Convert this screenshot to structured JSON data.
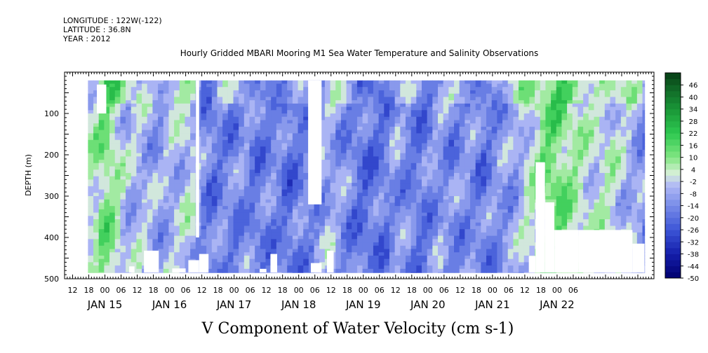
{
  "header": {
    "longitude": "LONGITUDE : 122W(-122)",
    "latitude": "LATITUDE : 36.8N",
    "year": "YEAR : 2012"
  },
  "chart_data": {
    "type": "heatmap",
    "title": "Hourly Gridded MBARI Mooring M1 Sea Water Temperature and Salinity Observations",
    "caption": "V Component of Water Velocity (cm s-1)",
    "ylabel": "DEPTH (m)",
    "x_range_hours": [
      -15,
      204
    ],
    "ylim": [
      500,
      0
    ],
    "y_reversed": true,
    "y_ticks": [
      100,
      200,
      300,
      400,
      500
    ],
    "hour_ticks": [
      "12",
      "18",
      "00",
      "06",
      "12",
      "18",
      "00",
      "06",
      "12",
      "18",
      "00",
      "06",
      "12",
      "18",
      "00",
      "06",
      "12",
      "18",
      "00",
      "06",
      "12",
      "18",
      "00",
      "06",
      "12",
      "18",
      "00",
      "06",
      "12",
      "18",
      "00",
      "06"
    ],
    "day_labels": [
      "JAN 15",
      "JAN 16",
      "JAN 17",
      "JAN 18",
      "JAN 19",
      "JAN 20",
      "JAN 21",
      "JAN 22"
    ],
    "colorbar_labels": [
      "46",
      "40",
      "34",
      "28",
      "22",
      "16",
      "10",
      "4",
      "-2",
      "-8",
      "-14",
      "-20",
      "-26",
      "-32",
      "-38",
      "-44",
      "-50"
    ],
    "value_range": [
      -50,
      52
    ],
    "data_extent": {
      "start_hour": -6.3,
      "end_hour": 200.5,
      "depth_top": 20,
      "depth_bottom": 485
    },
    "column_mean_velocity": [
      {
        "hour": -4,
        "v": 2
      },
      {
        "hour": 0,
        "v": 12
      },
      {
        "hour": 4,
        "v": 6
      },
      {
        "hour": 8,
        "v": -6
      },
      {
        "hour": 12,
        "v": -4
      },
      {
        "hour": 16,
        "v": -6
      },
      {
        "hour": 20,
        "v": -10
      },
      {
        "hour": 24,
        "v": -6
      },
      {
        "hour": 28,
        "v": -4
      },
      {
        "hour": 32,
        "v": 0
      },
      {
        "hour": 36,
        "v": -14
      },
      {
        "hour": 40,
        "v": -18
      },
      {
        "hour": 44,
        "v": -14
      },
      {
        "hour": 48,
        "v": -16
      },
      {
        "hour": 52,
        "v": -12
      },
      {
        "hour": 56,
        "v": -18
      },
      {
        "hour": 60,
        "v": -16
      },
      {
        "hour": 64,
        "v": -14
      },
      {
        "hour": 68,
        "v": -20
      },
      {
        "hour": 72,
        "v": -16
      },
      {
        "hour": 76,
        "v": -14
      },
      {
        "hour": 80,
        "v": -10
      },
      {
        "hour": 84,
        "v": -6
      },
      {
        "hour": 88,
        "v": -12
      },
      {
        "hour": 92,
        "v": -16
      },
      {
        "hour": 96,
        "v": -20
      },
      {
        "hour": 100,
        "v": -18
      },
      {
        "hour": 104,
        "v": -18
      },
      {
        "hour": 108,
        "v": -10
      },
      {
        "hour": 112,
        "v": -14
      },
      {
        "hour": 116,
        "v": -18
      },
      {
        "hour": 120,
        "v": -16
      },
      {
        "hour": 124,
        "v": -10
      },
      {
        "hour": 128,
        "v": -14
      },
      {
        "hour": 132,
        "v": -14
      },
      {
        "hour": 136,
        "v": -12
      },
      {
        "hour": 140,
        "v": -18
      },
      {
        "hour": 144,
        "v": -14
      },
      {
        "hour": 148,
        "v": -10
      },
      {
        "hour": 152,
        "v": -10
      },
      {
        "hour": 156,
        "v": -2
      },
      {
        "hour": 160,
        "v": 4
      },
      {
        "hour": 164,
        "v": 12
      },
      {
        "hour": 168,
        "v": 14
      },
      {
        "hour": 172,
        "v": 8
      },
      {
        "hour": 176,
        "v": 4
      },
      {
        "hour": 180,
        "v": 0
      },
      {
        "hour": 184,
        "v": 0
      },
      {
        "hour": 188,
        "v": 2
      },
      {
        "hour": 192,
        "v": -4
      },
      {
        "hour": 196,
        "v": -6
      },
      {
        "hour": 200,
        "v": -12
      }
    ],
    "missing_data": [
      {
        "h0": -3,
        "h1": 0.5,
        "d0": 30,
        "d1": 100
      },
      {
        "h0": 33.8,
        "h1": 35,
        "d0": 20,
        "d1": 400
      },
      {
        "h0": 75.5,
        "h1": 80.5,
        "d0": 20,
        "d1": 320
      },
      {
        "h0": 14.5,
        "h1": 20,
        "d0": 432,
        "d1": 485
      },
      {
        "h0": 9,
        "h1": 11,
        "d0": 470,
        "d1": 485
      },
      {
        "h0": 25,
        "h1": 30,
        "d0": 475,
        "d1": 485
      },
      {
        "h0": 31,
        "h1": 35,
        "d0": 455,
        "d1": 485
      },
      {
        "h0": 35,
        "h1": 38.5,
        "d0": 440,
        "d1": 485
      },
      {
        "h0": 57.5,
        "h1": 60,
        "d0": 476,
        "d1": 485
      },
      {
        "h0": 61.5,
        "h1": 64,
        "d0": 440,
        "d1": 485
      },
      {
        "h0": 76.5,
        "h1": 80.5,
        "d0": 462,
        "d1": 485
      },
      {
        "h0": 82.5,
        "h1": 85,
        "d0": 432,
        "d1": 485
      },
      {
        "h0": 160,
        "h1": 163.5,
        "d0": 218,
        "d1": 485
      },
      {
        "h0": 157.5,
        "h1": 160,
        "d0": 445,
        "d1": 485
      },
      {
        "h0": 163.5,
        "h1": 167,
        "d0": 315,
        "d1": 485
      },
      {
        "h0": 167,
        "h1": 176,
        "d0": 382,
        "d1": 485
      },
      {
        "h0": 176,
        "h1": 196,
        "d0": 382,
        "d1": 485
      },
      {
        "h0": 196,
        "h1": 200.5,
        "d0": 415,
        "d1": 485
      }
    ]
  }
}
